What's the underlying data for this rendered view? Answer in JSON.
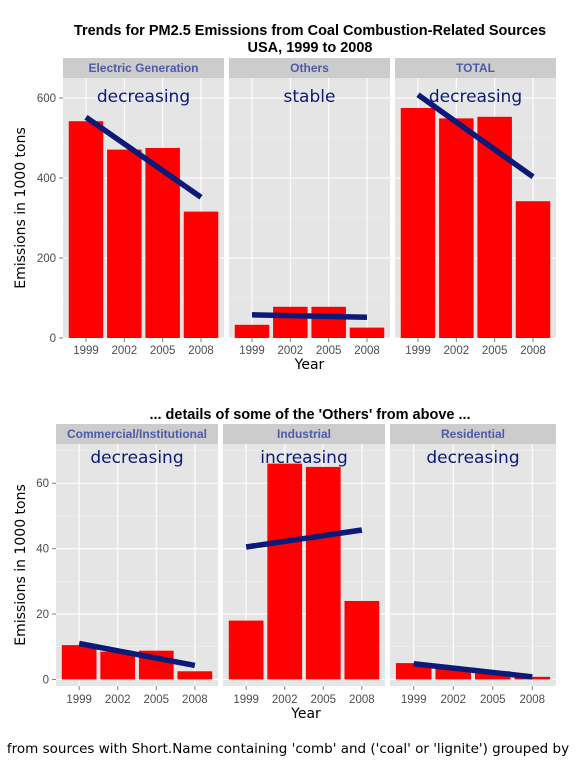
{
  "chart_data": [
    {
      "type": "bar",
      "title": "Trends for PM2.5 Emissions from Coal Combustion-Related Sources",
      "subtitle": "USA, 1999 to 2008",
      "xlabel": "Year",
      "ylabel": "Emissions in 1000 tons",
      "ylim": [
        0,
        650
      ],
      "yticks": [
        0,
        200,
        400,
        600
      ],
      "categories": [
        "1999",
        "2002",
        "2005",
        "2008"
      ],
      "bar_color": "#ff0000",
      "trend_color": "#0b1a78",
      "grid": true,
      "panels": [
        {
          "name": "Electric Generation",
          "trend_label": "decreasing",
          "values": [
            542,
            471,
            475,
            316
          ],
          "trend": [
            552,
            352
          ]
        },
        {
          "name": "Others",
          "trend_label": "stable",
          "values": [
            33,
            78,
            78,
            26
          ],
          "trend": [
            58,
            52
          ]
        },
        {
          "name": "TOTAL",
          "trend_label": "decreasing",
          "values": [
            575,
            549,
            553,
            342
          ],
          "trend": [
            608,
            403
          ]
        }
      ]
    },
    {
      "type": "bar",
      "title": "... details of some of the 'Others' from above ...",
      "xlabel": "Year",
      "ylabel": "Emissions in 1000 tons",
      "ylim": [
        -2,
        72
      ],
      "yticks": [
        0,
        20,
        40,
        60
      ],
      "categories": [
        "1999",
        "2002",
        "2005",
        "2008"
      ],
      "bar_color": "#ff0000",
      "trend_color": "#0b1a78",
      "grid": true,
      "panels": [
        {
          "name": "Commercial/Institutional",
          "trend_label": "decreasing",
          "values": [
            10.5,
            8.5,
            8.8,
            2.5
          ],
          "trend": [
            11,
            4.3
          ]
        },
        {
          "name": "Industrial",
          "trend_label": "increasing",
          "values": [
            18,
            66,
            65,
            24
          ],
          "trend": [
            40.5,
            45.7
          ]
        },
        {
          "name": "Residential",
          "trend_label": "decreasing",
          "values": [
            5,
            3.5,
            2.5,
            0.8
          ],
          "trend": [
            4.8,
            0.8
          ]
        }
      ]
    }
  ],
  "footer": "from sources with Short.Name containing 'comb' and ('coal' or 'lignite') grouped by"
}
